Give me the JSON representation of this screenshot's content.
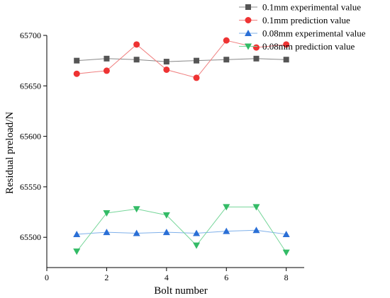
{
  "chart_data": {
    "type": "line",
    "title": "",
    "xlabel": "Bolt number",
    "ylabel": "Residual preload/N",
    "xlim": [
      0,
      8.6
    ],
    "ylim": [
      65470,
      65700
    ],
    "x_ticks": [
      "0",
      "2",
      "4",
      "6",
      "8"
    ],
    "y_ticks": [
      "65500",
      "65550",
      "65600",
      "65650",
      "65700"
    ],
    "grid": false,
    "legend_position": "top-right",
    "x": [
      1,
      2,
      3,
      4,
      5,
      6,
      7,
      8
    ],
    "series": [
      {
        "name": "0.1mm experimental value",
        "marker": "square",
        "color": "#555555",
        "line_color": "#888888",
        "values": [
          65675,
          65677,
          65676,
          65674,
          65675,
          65676,
          65677,
          65676
        ]
      },
      {
        "name": "0.1mm prediction value",
        "marker": "circle",
        "color": "#ee3333",
        "line_color": "#f08080",
        "values": [
          65662,
          65665,
          65691,
          65666,
          65658,
          65695,
          65688,
          65691
        ]
      },
      {
        "name": "0.08mm experimental value",
        "marker": "triangle-up",
        "color": "#2a6fd6",
        "line_color": "#7fb0ea",
        "values": [
          65503,
          65505,
          65504,
          65505,
          65504,
          65506,
          65507,
          65503
        ]
      },
      {
        "name": "0.08mm prediction value",
        "marker": "triangle-down",
        "color": "#33bb66",
        "line_color": "#77d69a",
        "values": [
          65486,
          65524,
          65528,
          65522,
          65492,
          65530,
          65530,
          65485
        ]
      }
    ]
  }
}
